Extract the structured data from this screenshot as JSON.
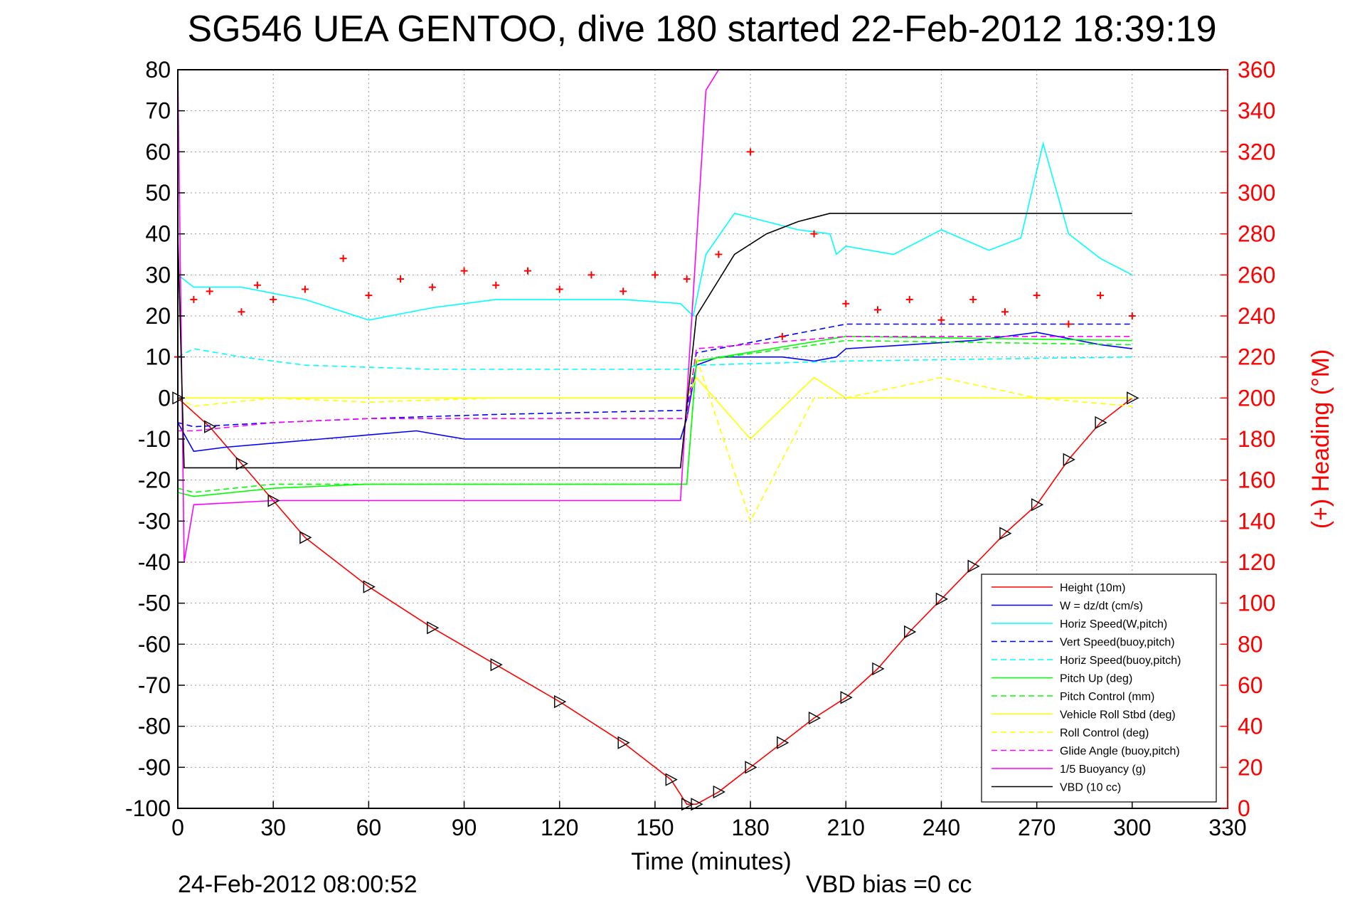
{
  "chart_data": {
    "type": "line",
    "title": "SG546 UEA GENTOO, dive 180 started 22-Feb-2012 18:39:19",
    "xlabel": "Time (minutes)",
    "ylabel": "",
    "ylabel_right": "(+) Heading (°M)",
    "xlim": [
      0,
      330
    ],
    "ylim": [
      -100,
      80
    ],
    "ylim_right": [
      0,
      360
    ],
    "x_ticks": [
      "0",
      "30",
      "60",
      "90",
      "120",
      "150",
      "180",
      "210",
      "240",
      "270",
      "300",
      "330"
    ],
    "y_ticks": [
      "80",
      "70",
      "60",
      "50",
      "40",
      "30",
      "20",
      "10",
      "0",
      "-10",
      "-20",
      "-30",
      "-40",
      "-50",
      "-60",
      "-70",
      "-80",
      "-90",
      "-100"
    ],
    "y_right_ticks": [
      "360",
      "340",
      "320",
      "300",
      "280",
      "260",
      "240",
      "220",
      "200",
      "180",
      "160",
      "140",
      "120",
      "100",
      "80",
      "60",
      "40",
      "20",
      "0"
    ],
    "grid": true,
    "legend_position": "bottom-right",
    "footer_left": "24-Feb-2012 08:00:52",
    "footer_right": "VBD bias =0 cc",
    "series": [
      {
        "name": "Height (10m)",
        "color": "#ff0000",
        "style": "solid",
        "x": [
          0,
          10,
          20,
          30,
          40,
          60,
          80,
          100,
          120,
          140,
          155,
          160,
          163,
          170,
          180,
          190,
          200,
          210,
          220,
          230,
          240,
          250,
          260,
          270,
          280,
          290,
          300
        ],
        "y": [
          0,
          -7,
          -16,
          -25,
          -34,
          -46,
          -56,
          -65,
          -74,
          -84,
          -93,
          -99,
          -99,
          -96,
          -90,
          -84,
          -78,
          -73,
          -66,
          -57,
          -49,
          -41,
          -33,
          -26,
          -15,
          -6,
          0
        ]
      },
      {
        "name": "W = dz/dt (cm/s)",
        "color": "#0000ff",
        "style": "solid",
        "x": [
          0,
          5,
          15,
          30,
          45,
          60,
          75,
          90,
          105,
          120,
          140,
          158,
          160,
          163,
          170,
          180,
          190,
          200,
          207,
          210,
          230,
          250,
          270,
          290,
          300
        ],
        "y": [
          -6,
          -13,
          -12,
          -11,
          -10,
          -9,
          -8,
          -10,
          -10,
          -10,
          -10,
          -10,
          -5,
          8,
          10,
          10,
          10,
          9,
          10,
          12,
          13,
          14,
          16,
          13,
          12
        ]
      },
      {
        "name": "Horiz Speed(W,pitch)",
        "color": "#00ffff",
        "style": "solid",
        "x": [
          0,
          5,
          20,
          40,
          60,
          80,
          100,
          120,
          140,
          158,
          162,
          166,
          175,
          185,
          195,
          205,
          207,
          210,
          225,
          240,
          255,
          265,
          272,
          280,
          290,
          300
        ],
        "y": [
          30,
          27,
          27,
          24,
          19,
          22,
          24,
          24,
          24,
          23,
          20,
          35,
          45,
          43,
          41,
          40,
          35,
          37,
          35,
          41,
          36,
          39,
          62,
          40,
          34,
          30
        ]
      },
      {
        "name": "Vert Speed(buoy,pitch)",
        "color": "#0000ff",
        "style": "dashed",
        "x": [
          0,
          5,
          30,
          60,
          100,
          160,
          163,
          210,
          300
        ],
        "y": [
          -6,
          -7,
          -6,
          -5,
          -4,
          -3,
          11,
          18,
          18
        ]
      },
      {
        "name": "Horiz Speed(buoy,pitch)",
        "color": "#00ffff",
        "style": "dashed",
        "x": [
          0,
          5,
          20,
          40,
          80,
          160,
          163,
          210,
          300
        ],
        "y": [
          10,
          12,
          10,
          8,
          7,
          7,
          8,
          9,
          10
        ]
      },
      {
        "name": "Pitch Up (deg)",
        "color": "#00ff00",
        "style": "solid",
        "x": [
          0,
          5,
          30,
          60,
          100,
          160,
          163,
          210,
          300
        ],
        "y": [
          -23,
          -24,
          -22,
          -21,
          -21,
          -21,
          9,
          15,
          14
        ]
      },
      {
        "name": "Pitch Control (mm)",
        "color": "#00ff00",
        "style": "dashed",
        "x": [
          0,
          5,
          30,
          60,
          100,
          160,
          163,
          210,
          300
        ],
        "y": [
          -22,
          -23,
          -21,
          -21,
          -21,
          -21,
          9,
          14,
          13
        ]
      },
      {
        "name": "Vehicle Roll Stbd (deg)",
        "color": "#ffff00",
        "style": "solid",
        "x": [
          0,
          5,
          30,
          60,
          100,
          160,
          163,
          180,
          200,
          210,
          240,
          270,
          300
        ],
        "y": [
          0,
          0,
          0,
          0,
          0,
          0,
          5,
          -10,
          5,
          0,
          0,
          0,
          0
        ]
      },
      {
        "name": "Roll Control (deg)",
        "color": "#ffff00",
        "style": "dashed",
        "x": [
          0,
          5,
          30,
          60,
          100,
          160,
          163,
          180,
          200,
          210,
          240,
          270,
          300
        ],
        "y": [
          0,
          -2,
          0,
          -1,
          0,
          0,
          10,
          -30,
          0,
          0,
          5,
          0,
          -2
        ]
      },
      {
        "name": "Glide Angle (buoy,pitch)",
        "color": "#ff00ff",
        "style": "dashed",
        "x": [
          0,
          5,
          30,
          60,
          100,
          160,
          163,
          210,
          300
        ],
        "y": [
          -8,
          -8,
          -6,
          -5,
          -5,
          -5,
          12,
          15,
          15
        ]
      },
      {
        "name": "1/5 Buoyancy (g)",
        "color": "#ff00ff",
        "style": "solid",
        "x": [
          0,
          2,
          5,
          30,
          60,
          100,
          158,
          160,
          166,
          170
        ],
        "y": [
          80,
          -40,
          -26,
          -25,
          -25,
          -25,
          -25,
          0,
          75,
          80
        ]
      },
      {
        "name": "VBD (10 cc)",
        "color": "#000000",
        "style": "solid",
        "x": [
          0,
          2,
          5,
          30,
          60,
          100,
          158,
          160,
          163,
          175,
          185,
          195,
          205,
          210,
          250,
          300
        ],
        "y": [
          40,
          -17,
          -17,
          -17,
          -17,
          -17,
          -17,
          -2,
          20,
          35,
          40,
          43,
          45,
          45,
          45,
          45
        ]
      },
      {
        "name": "Heading",
        "axis": "right",
        "color": "#ff0000",
        "style": "markers-plus",
        "x": [
          0,
          5,
          10,
          20,
          25,
          30,
          40,
          52,
          60,
          70,
          80,
          90,
          100,
          110,
          120,
          130,
          140,
          150,
          160,
          170,
          180,
          190,
          200,
          210,
          220,
          230,
          240,
          250,
          260,
          270,
          280,
          290,
          300
        ],
        "y": [
          220,
          248,
          252,
          242,
          255,
          248,
          253,
          268,
          250,
          258,
          254,
          262,
          255,
          262,
          253,
          260,
          252,
          260,
          258,
          270,
          320,
          230,
          280,
          246,
          243,
          248,
          238,
          248,
          242,
          250,
          236,
          250,
          240
        ]
      }
    ],
    "legend": [
      {
        "label": "Height (10m)",
        "color": "#ff0000",
        "style": "solid"
      },
      {
        "label": "W = dz/dt (cm/s)",
        "color": "#0000ff",
        "style": "solid"
      },
      {
        "label": "Horiz Speed(W,pitch)",
        "color": "#00ffff",
        "style": "solid"
      },
      {
        "label": "Vert Speed(buoy,pitch)",
        "color": "#0000ff",
        "style": "dashed"
      },
      {
        "label": "Horiz Speed(buoy,pitch)",
        "color": "#00ffff",
        "style": "dashed"
      },
      {
        "label": "Pitch Up (deg)",
        "color": "#00ff00",
        "style": "solid"
      },
      {
        "label": "Pitch Control (mm)",
        "color": "#00ff00",
        "style": "dashed"
      },
      {
        "label": "Vehicle Roll Stbd (deg)",
        "color": "#ffff00",
        "style": "solid"
      },
      {
        "label": "Roll Control (deg)",
        "color": "#ffff00",
        "style": "dashed"
      },
      {
        "label": "Glide Angle (buoy,pitch)",
        "color": "#ff00ff",
        "style": "dashed"
      },
      {
        "label": "1/5 Buoyancy (g)",
        "color": "#ff00ff",
        "style": "solid"
      },
      {
        "label": "VBD (10 cc)",
        "color": "#000000",
        "style": "solid"
      }
    ]
  }
}
